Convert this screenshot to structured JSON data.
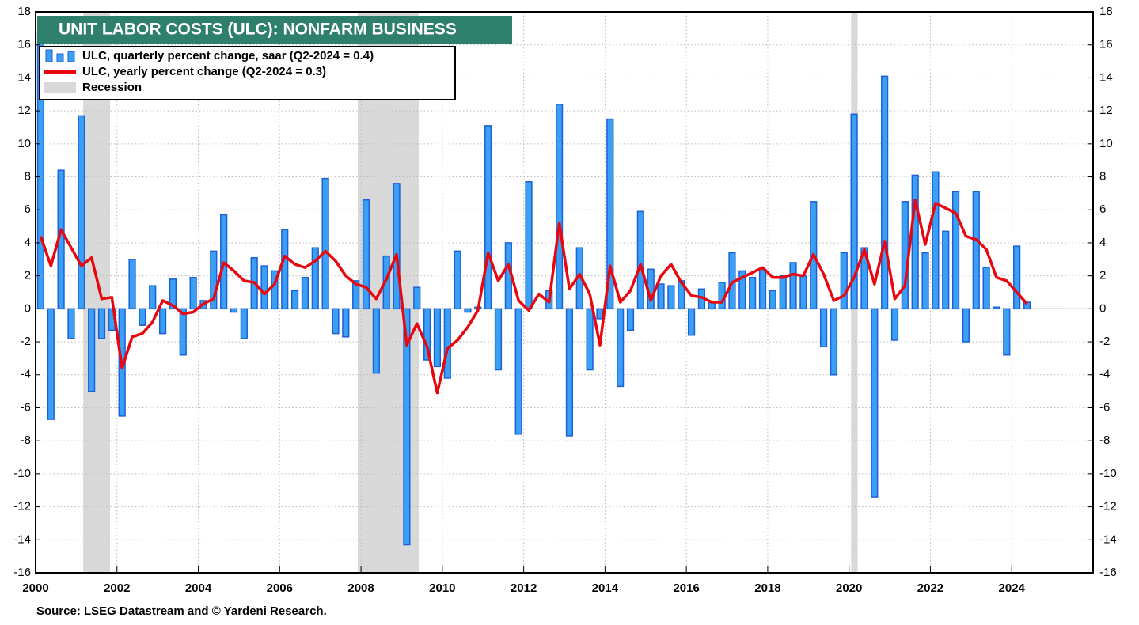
{
  "chart_data": {
    "type": "bar-line",
    "title": "UNIT LABOR COSTS (ULC): NONFARM BUSINESS",
    "source": "Source: LSEG Datastream and © Yardeni Research.",
    "recession_label": "Recession",
    "recessions": [
      [
        2001.17,
        2001.83
      ],
      [
        2007.92,
        2009.42
      ],
      [
        2020.05,
        2020.21
      ]
    ],
    "xlim": [
      2000,
      2026
    ],
    "xticks": [
      2000,
      2002,
      2004,
      2006,
      2008,
      2010,
      2012,
      2014,
      2016,
      2018,
      2020,
      2022,
      2024
    ],
    "ylim": [
      -16,
      18
    ],
    "yticks": [
      -16,
      -14,
      -12,
      -10,
      -8,
      -6,
      -4,
      -2,
      0,
      2,
      4,
      6,
      8,
      10,
      12,
      14,
      16,
      18
    ],
    "grid": true,
    "x": [
      2000.125,
      2000.375,
      2000.625,
      2000.875,
      2001.125,
      2001.375,
      2001.625,
      2001.875,
      2002.125,
      2002.375,
      2002.625,
      2002.875,
      2003.125,
      2003.375,
      2003.625,
      2003.875,
      2004.125,
      2004.375,
      2004.625,
      2004.875,
      2005.125,
      2005.375,
      2005.625,
      2005.875,
      2006.125,
      2006.375,
      2006.625,
      2006.875,
      2007.125,
      2007.375,
      2007.625,
      2007.875,
      2008.125,
      2008.375,
      2008.625,
      2008.875,
      2009.125,
      2009.375,
      2009.625,
      2009.875,
      2010.125,
      2010.375,
      2010.625,
      2010.875,
      2011.125,
      2011.375,
      2011.625,
      2011.875,
      2012.125,
      2012.375,
      2012.625,
      2012.875,
      2013.125,
      2013.375,
      2013.625,
      2013.875,
      2014.125,
      2014.375,
      2014.625,
      2014.875,
      2015.125,
      2015.375,
      2015.625,
      2015.875,
      2016.125,
      2016.375,
      2016.625,
      2016.875,
      2017.125,
      2017.375,
      2017.625,
      2017.875,
      2018.125,
      2018.375,
      2018.625,
      2018.875,
      2019.125,
      2019.375,
      2019.625,
      2019.875,
      2020.125,
      2020.375,
      2020.625,
      2020.875,
      2021.125,
      2021.375,
      2021.625,
      2021.875,
      2022.125,
      2022.375,
      2022.625,
      2022.875,
      2023.125,
      2023.375,
      2023.625,
      2023.875,
      2024.125,
      2024.375
    ],
    "series": [
      {
        "name": "ULC, quarterly percent change, saar (Q2-2024 = 0.4)",
        "kind": "bar",
        "color": "#3aa0f5",
        "stroke": "#1d5fd6",
        "values": [
          16.7,
          -6.7,
          8.4,
          -1.8,
          11.7,
          -5.0,
          -1.8,
          -1.3,
          -6.5,
          3.0,
          -1.0,
          1.4,
          -1.5,
          1.8,
          -2.8,
          1.9,
          0.5,
          3.5,
          5.7,
          -0.2,
          -1.8,
          3.1,
          2.6,
          2.3,
          4.8,
          1.1,
          1.9,
          3.7,
          7.9,
          -1.5,
          -1.7,
          1.7,
          6.6,
          -3.9,
          3.2,
          7.6,
          -14.3,
          1.3,
          -3.1,
          -3.5,
          -4.2,
          3.5,
          -0.2,
          0.1,
          11.1,
          -3.7,
          4.0,
          -7.6,
          7.7,
          0.0,
          1.1,
          12.4,
          -7.7,
          3.7,
          -3.7,
          -0.6,
          11.5,
          -4.7,
          -1.3,
          5.9,
          2.4,
          1.5,
          1.4,
          1.7,
          -1.6,
          1.2,
          0.4,
          1.6,
          3.4,
          2.3,
          1.9,
          2.4,
          1.1,
          2.0,
          2.8,
          2.0,
          6.5,
          -2.3,
          -4.0,
          3.4,
          11.8,
          3.7,
          -11.4,
          14.1,
          -1.9,
          6.5,
          8.1,
          3.4,
          8.3,
          4.7,
          7.1,
          -2.0,
          7.1,
          2.5,
          0.1,
          -2.8,
          3.8,
          0.4
        ]
      },
      {
        "name": "ULC, yearly percent change (Q2-2024 = 0.3)",
        "kind": "line",
        "color": "#e8070e",
        "values": [
          4.4,
          2.6,
          4.8,
          3.7,
          2.6,
          3.1,
          0.6,
          0.7,
          -3.6,
          -1.7,
          -1.5,
          -0.8,
          0.5,
          0.2,
          -0.3,
          -0.2,
          0.3,
          0.6,
          2.8,
          2.3,
          1.7,
          1.6,
          0.9,
          1.5,
          3.2,
          2.7,
          2.5,
          2.9,
          3.5,
          2.9,
          2.0,
          1.5,
          1.3,
          0.6,
          1.8,
          3.3,
          -2.2,
          -0.9,
          -2.3,
          -5.1,
          -2.4,
          -1.9,
          -1.1,
          -0.1,
          3.4,
          1.7,
          2.7,
          0.5,
          -0.1,
          0.9,
          0.4,
          5.2,
          1.2,
          2.1,
          0.9,
          -2.2,
          2.6,
          0.4,
          1.1,
          2.7,
          0.5,
          2.0,
          2.7,
          1.6,
          0.8,
          0.7,
          0.4,
          0.4,
          1.6,
          1.9,
          2.2,
          2.5,
          1.9,
          1.9,
          2.1,
          2.0,
          3.3,
          2.1,
          0.5,
          0.8,
          1.9,
          3.6,
          1.5,
          4.1,
          0.6,
          1.4,
          6.6,
          3.9,
          6.4,
          6.1,
          5.8,
          4.4,
          4.2,
          3.6,
          1.9,
          1.7,
          1.0,
          0.3
        ]
      }
    ]
  }
}
